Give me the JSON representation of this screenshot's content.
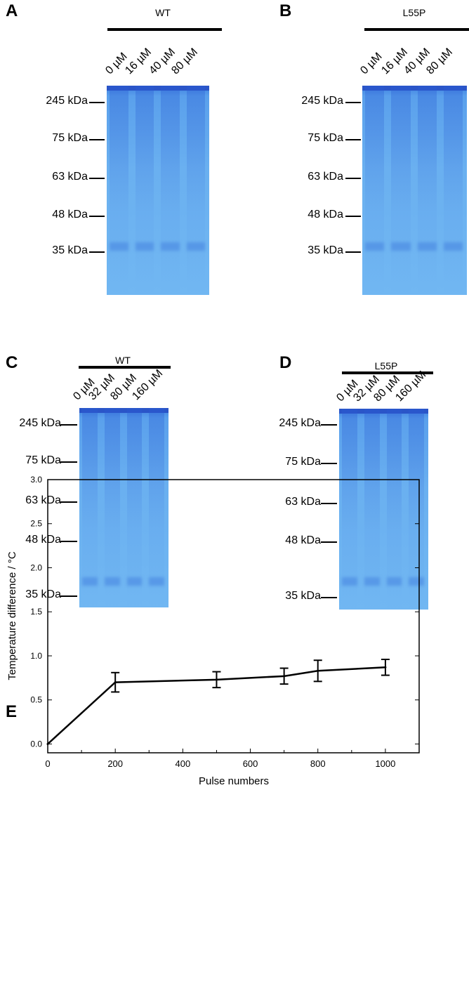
{
  "panels": [
    {
      "id": "A",
      "group": "WT",
      "lanes": [
        "0 µM",
        "16 µM",
        "40 µM",
        "80 µM"
      ],
      "markers": [
        "245 kDa",
        "75 kDa",
        "63 kDa",
        "48 kDa",
        "35 kDa"
      ]
    },
    {
      "id": "B",
      "group": "L55P",
      "lanes": [
        "0 µM",
        "16 µM",
        "40 µM",
        "80 µM"
      ],
      "markers": [
        "245 kDa",
        "75 kDa",
        "63 kDa",
        "48 kDa",
        "35 kDa"
      ]
    },
    {
      "id": "C",
      "group": "WT",
      "lanes": [
        "0 µM",
        "32 µM",
        "80 µM",
        "160 µM"
      ],
      "markers": [
        "245 kDa",
        "75 kDa",
        "63 kDa",
        "48 kDa",
        "35 kDa"
      ]
    },
    {
      "id": "D",
      "group": "L55P",
      "lanes": [
        "0 µM",
        "32 µM",
        "80 µM",
        "160 µM"
      ],
      "markers": [
        "245 kDa",
        "75 kDa",
        "63 kDa",
        "48 kDa",
        "35 kDa"
      ]
    },
    {
      "id": "E"
    }
  ],
  "chart_data": {
    "type": "line",
    "title": "",
    "xlabel": "Pulse numbers",
    "ylabel": "Temperature difference / °C",
    "xlim": [
      0,
      1100
    ],
    "ylim": [
      -0.1,
      3.0
    ],
    "xticks": [
      "0",
      "200",
      "400",
      "600",
      "800",
      "1000"
    ],
    "yticks": [
      "0.0",
      "0.5",
      "1.0",
      "1.5",
      "2.0",
      "2.5",
      "3.0"
    ],
    "x": [
      0,
      200,
      500,
      700,
      800,
      1000
    ],
    "y": [
      0,
      0.7,
      0.73,
      0.77,
      0.83,
      0.87
    ],
    "error": [
      0,
      0.11,
      0.09,
      0.09,
      0.12,
      0.09
    ],
    "grid": false,
    "legend": "none"
  }
}
